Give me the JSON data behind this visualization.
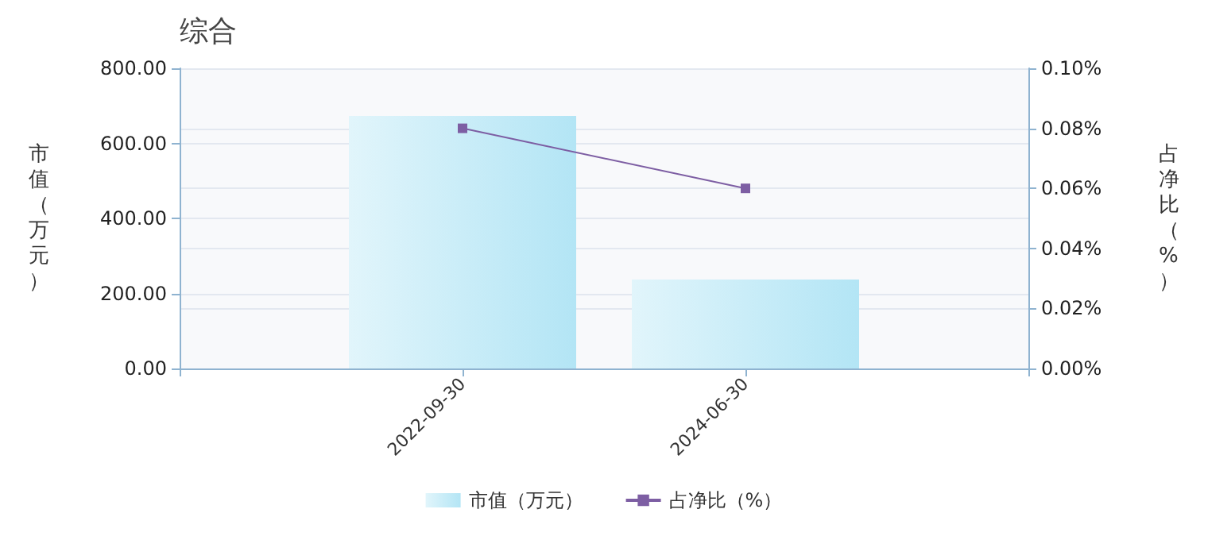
{
  "chart_data": {
    "type": "bar",
    "title": "综合",
    "ylabel": "市值（万元）",
    "y2label": "占净比（%）",
    "categories": [
      null,
      "2022-09-30",
      "2024-06-30",
      null
    ],
    "series": [
      {
        "name": "市值（万元）",
        "color": "#b3e5f5",
        "values": [
          null,
          673,
          237,
          null
        ]
      },
      {
        "name": "占净比（%）",
        "type": "line",
        "axis": "y2",
        "color": "#7d5ea3",
        "marker": "square",
        "values": [
          null,
          0.08,
          0.06,
          null
        ]
      }
    ],
    "ylim": [
      0,
      800
    ],
    "yticks": [
      {
        "value": 0,
        "label": "0.00"
      },
      {
        "value": 200,
        "label": "200.00"
      },
      {
        "value": 400,
        "label": "400.00"
      },
      {
        "value": 600,
        "label": "600.00"
      },
      {
        "value": 800,
        "label": "800.00"
      }
    ],
    "y2lim": [
      0,
      0.1
    ],
    "y2ticks": [
      {
        "value": 0,
        "label": "0.00%"
      },
      {
        "value": 0.02,
        "label": "0.02%"
      },
      {
        "value": 0.04,
        "label": "0.04%"
      },
      {
        "value": 0.06,
        "label": "0.06%"
      },
      {
        "value": 0.08,
        "label": "0.08%"
      },
      {
        "value": 0.1,
        "label": "0.10%"
      }
    ],
    "grid": "y",
    "legend": "bottom"
  }
}
